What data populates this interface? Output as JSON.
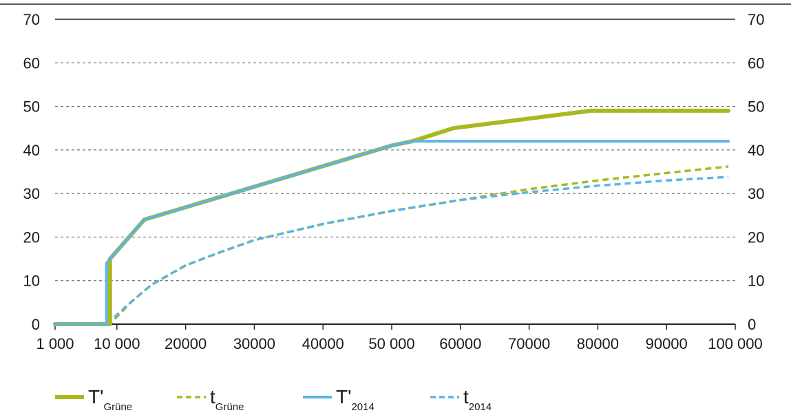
{
  "chart_data": {
    "type": "line",
    "x_ticks": [
      1000,
      10000,
      20000,
      30000,
      40000,
      50000,
      60000,
      70000,
      80000,
      90000,
      100000
    ],
    "x_tick_labels": [
      "1 000",
      "10 000",
      "20000",
      "30000",
      "40000",
      "50 000",
      "60000",
      "70000",
      "80000",
      "90000",
      "100 000"
    ],
    "y_ticks": [
      0,
      10,
      20,
      30,
      40,
      50,
      60,
      70
    ],
    "y_tick_labels": [
      "0",
      "10",
      "20",
      "30",
      "40",
      "50",
      "60",
      "70"
    ],
    "xlim": [
      1000,
      100000
    ],
    "ylim": [
      0,
      70
    ],
    "grid": "horizontal dashed",
    "legend_position": "bottom",
    "series": [
      {
        "name": "T'Grüne",
        "main": "T'",
        "sub": "Grüne",
        "color": "#aab820",
        "style": "solid",
        "points": [
          [
            1000,
            0
          ],
          [
            9000,
            0
          ],
          [
            9000,
            15
          ],
          [
            14000,
            24
          ],
          [
            50000,
            41
          ],
          [
            53000,
            42
          ],
          [
            59000,
            45
          ],
          [
            79000,
            49
          ],
          [
            99000,
            49
          ]
        ]
      },
      {
        "name": "tGrüne",
        "main": "t",
        "sub": "Grüne",
        "color": "#aab820",
        "style": "dashed",
        "points": [
          [
            1000,
            0
          ],
          [
            9000,
            0
          ],
          [
            12000,
            5
          ],
          [
            15000,
            9
          ],
          [
            20000,
            13.5
          ],
          [
            25000,
            16.5
          ],
          [
            30000,
            19.3
          ],
          [
            40000,
            23
          ],
          [
            50000,
            26
          ],
          [
            60000,
            28.5
          ],
          [
            70000,
            31
          ],
          [
            80000,
            33
          ],
          [
            90000,
            34.7
          ],
          [
            99000,
            36.2
          ]
        ]
      },
      {
        "name": "T'2014",
        "main": "T'",
        "sub": "2014",
        "color": "#5bb4e5",
        "style": "solid",
        "points": [
          [
            1000,
            0
          ],
          [
            8500,
            0
          ],
          [
            8500,
            14
          ],
          [
            9000,
            15
          ],
          [
            14000,
            24
          ],
          [
            50000,
            41
          ],
          [
            53000,
            42
          ],
          [
            99000,
            42
          ]
        ]
      },
      {
        "name": "t2014",
        "main": "t",
        "sub": "2014",
        "color": "#5bb4e5",
        "style": "dashed",
        "points": [
          [
            1000,
            0
          ],
          [
            8500,
            0
          ],
          [
            12000,
            5
          ],
          [
            15000,
            9
          ],
          [
            20000,
            13.5
          ],
          [
            25000,
            16.5
          ],
          [
            30000,
            19.3
          ],
          [
            40000,
            23
          ],
          [
            50000,
            26
          ],
          [
            60000,
            28.5
          ],
          [
            70000,
            30.3
          ],
          [
            80000,
            31.8
          ],
          [
            90000,
            33
          ],
          [
            99000,
            33.8
          ]
        ]
      }
    ]
  }
}
